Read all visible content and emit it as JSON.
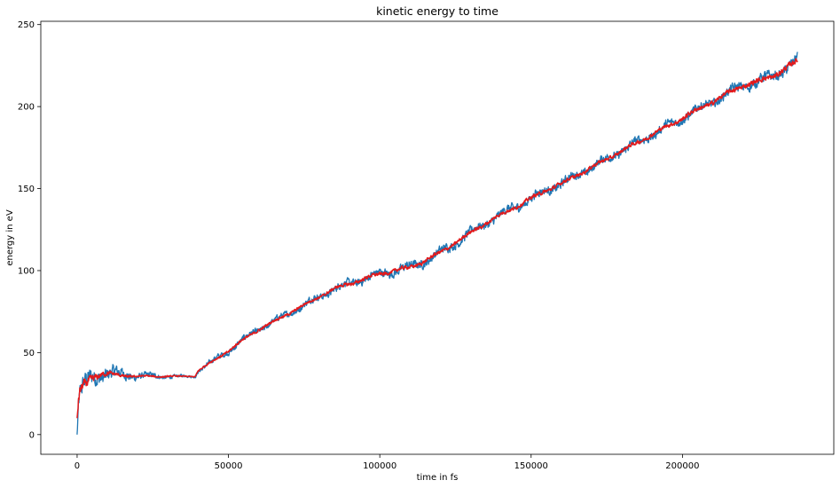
{
  "chart_data": {
    "type": "line",
    "title": "kinetic energy to time",
    "xlabel": "time in fs",
    "ylabel": "energy in eV",
    "xlim": [
      -12000,
      250000
    ],
    "ylim": [
      -12,
      252
    ],
    "xticks": [
      0,
      50000,
      100000,
      150000,
      200000
    ],
    "xtick_labels": [
      "0",
      "50000",
      "100000",
      "150000",
      "200000"
    ],
    "yticks": [
      0,
      50,
      100,
      150,
      200,
      250
    ],
    "ytick_labels": [
      "0",
      "50",
      "100",
      "150",
      "200",
      "250"
    ],
    "grid": false,
    "legend": "none",
    "series": [
      {
        "color": "#1f77b4",
        "x": [
          0,
          500,
          1000,
          2000,
          3000,
          4000,
          5000,
          6000,
          8000,
          10000,
          12000,
          15000,
          20000,
          25000,
          30000,
          35000,
          39000,
          40000,
          45000,
          50000,
          55000,
          60000,
          65000,
          70000,
          75000,
          80000,
          85000,
          90000,
          95000,
          100000,
          105000,
          110000,
          115000,
          120000,
          125000,
          130000,
          135000,
          140000,
          145000,
          150000,
          155000,
          160000,
          165000,
          170000,
          175000,
          180000,
          185000,
          190000,
          195000,
          200000,
          205000,
          210000,
          215000,
          220000,
          225000,
          230000,
          235000,
          238000
        ],
        "y": [
          0,
          18,
          24,
          28,
          31,
          33,
          35,
          36,
          37,
          37.5,
          37,
          36.5,
          36,
          35.5,
          35.5,
          35.5,
          35.5,
          39,
          45,
          51,
          58,
          64,
          69,
          74,
          79,
          84,
          89,
          92,
          95,
          98,
          100,
          102,
          106,
          111,
          117,
          123,
          129,
          134,
          139,
          144,
          149,
          153,
          158,
          163,
          168,
          173,
          178,
          183,
          188,
          193,
          198,
          203,
          208,
          213,
          215,
          219,
          224,
          228
        ],
        "noise": [
          0,
          10,
          10,
          10,
          10,
          10,
          10,
          10,
          9,
          8,
          7,
          6,
          4,
          3,
          2,
          1.5,
          1.5,
          2,
          3,
          3.5,
          3.5,
          3.5,
          3.5,
          3.5,
          4,
          4,
          4,
          4.5,
          4.5,
          5,
          5,
          5,
          5,
          5,
          5,
          5,
          5,
          5,
          5,
          5,
          5,
          5,
          5,
          5,
          5,
          5,
          5,
          5,
          5,
          5,
          5,
          5,
          5,
          6,
          6,
          6,
          6,
          7
        ]
      },
      {
        "color": "#e31a1c",
        "x": [
          0,
          500,
          1000,
          2000,
          3000,
          4000,
          5000,
          6000,
          8000,
          10000,
          12000,
          15000,
          20000,
          25000,
          30000,
          35000,
          39000,
          40000,
          45000,
          50000,
          55000,
          60000,
          65000,
          70000,
          75000,
          80000,
          85000,
          90000,
          95000,
          100000,
          105000,
          110000,
          115000,
          120000,
          125000,
          130000,
          135000,
          140000,
          145000,
          150000,
          155000,
          160000,
          165000,
          170000,
          175000,
          180000,
          185000,
          190000,
          195000,
          200000,
          205000,
          210000,
          215000,
          220000,
          225000,
          230000,
          235000,
          238000
        ],
        "y": [
          10,
          20,
          25,
          29,
          31,
          33,
          35,
          36,
          37,
          37,
          36.5,
          36,
          35.5,
          35.5,
          35.5,
          35.5,
          35.5,
          39,
          45,
          51,
          58,
          64,
          69,
          74,
          79,
          84,
          89,
          92,
          95,
          98,
          100,
          102,
          106,
          111,
          117,
          123,
          129,
          134,
          139,
          144,
          149,
          153,
          158,
          163,
          168,
          173,
          178,
          183,
          188,
          193,
          198,
          203,
          208,
          213,
          215,
          219,
          224,
          228
        ],
        "noise": [
          0,
          6,
          6,
          5,
          5,
          5,
          4,
          4,
          3,
          2.5,
          2,
          1.5,
          1,
          1,
          0.8,
          0.6,
          0.6,
          1,
          1.2,
          1.5,
          1.5,
          1.5,
          1.5,
          1.5,
          1.5,
          1.5,
          1.5,
          2,
          2,
          2,
          2,
          2,
          2,
          2,
          2,
          2,
          2,
          2,
          2,
          2,
          2,
          2,
          2,
          2,
          2,
          2,
          2,
          2,
          2,
          2.5,
          2.5,
          2.5,
          2.5,
          2.5,
          3,
          3,
          3,
          3
        ]
      }
    ]
  }
}
